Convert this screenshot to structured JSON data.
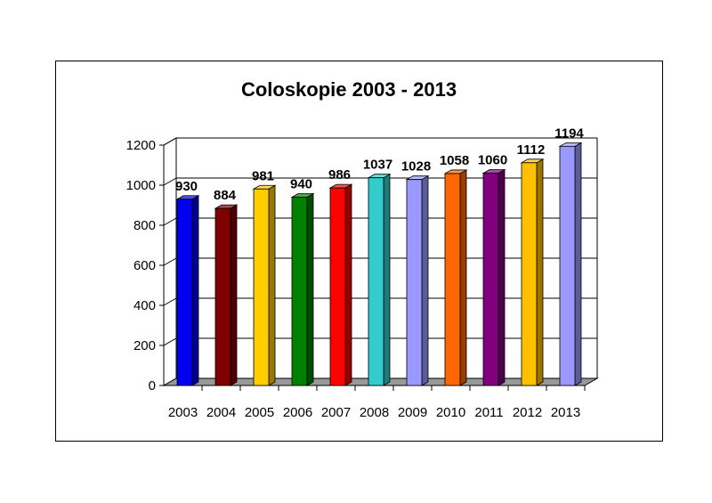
{
  "chart_data": {
    "type": "bar",
    "title": "Coloskopie 2003 - 2013",
    "xlabel": "",
    "ylabel": "",
    "categories": [
      "2003",
      "2004",
      "2005",
      "2006",
      "2007",
      "2008",
      "2009",
      "2010",
      "2011",
      "2012",
      "2013"
    ],
    "values": [
      930,
      884,
      981,
      940,
      986,
      1037,
      1028,
      1058,
      1060,
      1112,
      1194
    ],
    "colors": [
      "#0000ee",
      "#800000",
      "#ffcc00",
      "#008000",
      "#ff0000",
      "#33cccc",
      "#9999ff",
      "#ff6600",
      "#800080",
      "#ffc000",
      "#9999ff"
    ],
    "ylim": [
      0,
      1200
    ],
    "yticks": [
      0,
      200,
      400,
      600,
      800,
      1000,
      1200
    ],
    "grid": true,
    "legend": "none",
    "data_labels": true,
    "style": "3d-bar"
  }
}
